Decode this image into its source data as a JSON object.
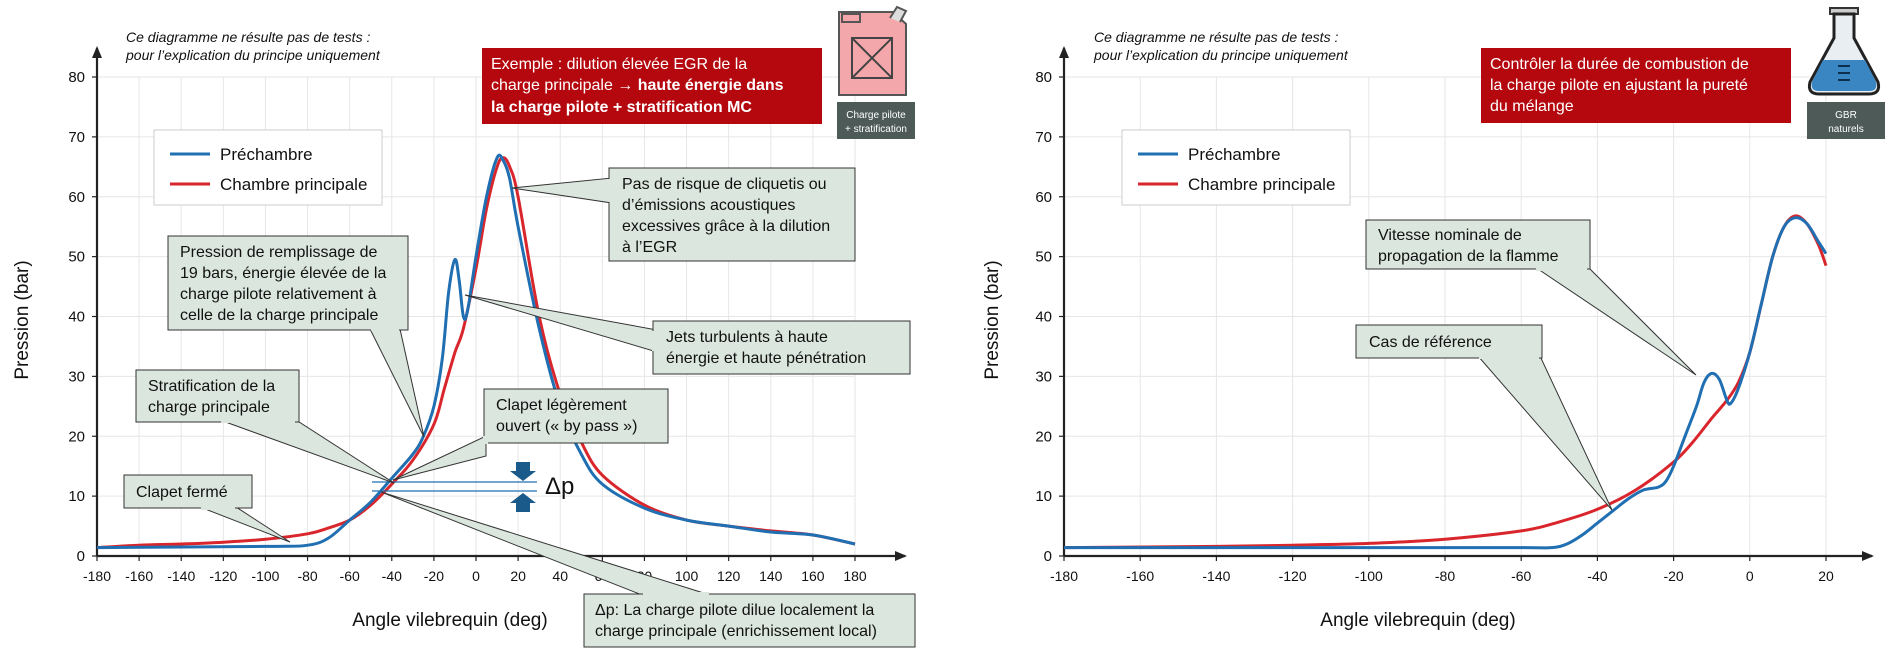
{
  "colors": {
    "prechambre": "#1f6fb2",
    "chambre": "#d9262c",
    "callout_fill": "#dbe6df",
    "red_box": "#b5080e",
    "icon_label_bg": "#4d5a58",
    "grid": "#e6e6e6"
  },
  "chart_data": [
    {
      "type": "line",
      "title": "",
      "xlabel": "Angle vilebrequin (deg)",
      "ylabel": "Pression (bar)",
      "xlim": [
        -180,
        180
      ],
      "ylim": [
        0,
        80
      ],
      "xticks": [
        -180,
        -160,
        -140,
        -120,
        -100,
        -80,
        -60,
        -40,
        -20,
        0,
        20,
        40,
        60,
        80,
        100,
        120,
        140,
        160,
        180
      ],
      "yticks": [
        0,
        10,
        20,
        30,
        40,
        50,
        60,
        70,
        80
      ],
      "grid": true,
      "legend_position": "upper-left",
      "note_lines": [
        "Ce diagramme ne résulte pas de tests :",
        "pour l’explication du principe uniquement"
      ],
      "highlight_lines": [
        "Exemple : dilution élevée EGR de la",
        "charge principale → haute énergie dans",
        "la charge pilote + stratification MC"
      ],
      "icon": {
        "name": "fuel-can-icon",
        "label_lines": [
          "Charge pilote",
          "+ stratification"
        ]
      },
      "series": [
        {
          "name": "Préchambre",
          "color": "#1f6fb2",
          "x": [
            -180,
            -100,
            -80,
            -70,
            -60,
            -50,
            -40,
            -30,
            -25,
            -20,
            -16,
            -13,
            -10,
            -8,
            -6,
            -4,
            0,
            5,
            10,
            13,
            16,
            20,
            30,
            40,
            50,
            60,
            80,
            100,
            120,
            140,
            160,
            180
          ],
          "y": [
            1.4,
            1.6,
            1.8,
            3,
            6,
            9,
            13,
            17,
            20,
            25,
            33,
            44,
            49.5,
            46,
            40,
            41,
            50,
            60,
            66.5,
            66,
            63,
            55,
            38,
            25,
            17,
            12,
            8,
            6,
            5,
            4,
            3.5,
            2
          ]
        },
        {
          "name": "Chambre principale",
          "color": "#d9262c",
          "x": [
            -180,
            -160,
            -140,
            -120,
            -100,
            -80,
            -70,
            -60,
            -50,
            -40,
            -30,
            -20,
            -15,
            -10,
            -6,
            0,
            5,
            10,
            13,
            16,
            20,
            30,
            40,
            50,
            60,
            80,
            100,
            120,
            140,
            160,
            180
          ],
          "y": [
            1.4,
            1.8,
            2,
            2.3,
            2.8,
            3.7,
            4.7,
            6,
            8.5,
            12,
            16,
            22,
            28,
            34,
            38,
            48,
            58,
            65,
            66.5,
            65,
            60,
            40,
            27,
            19,
            13.5,
            8.5,
            6,
            5,
            4.2,
            3.5,
            2
          ]
        }
      ],
      "callouts": [
        {
          "name": "callout-egr",
          "lines": [
            "Pas de risque de cliquetis ou",
            "d’émissions acoustiques",
            "excessives grâce à la dilution",
            "à l’EGR"
          ]
        },
        {
          "name": "callout-pression",
          "lines": [
            "Pression de remplissage de",
            "19 bars, énergie élevée de la",
            "charge pilote relativement à",
            "celle de la charge principale"
          ]
        },
        {
          "name": "callout-jets",
          "lines": [
            "Jets turbulents à haute",
            "énergie et haute pénétration"
          ]
        },
        {
          "name": "callout-stratification",
          "lines": [
            "Stratification de la",
            "charge principale"
          ]
        },
        {
          "name": "callout-clapet-ouvert",
          "lines": [
            "Clapet légèrement",
            "ouvert (« by pass »)"
          ]
        },
        {
          "name": "callout-clapet-ferme",
          "lines": [
            "Clapet fermé"
          ]
        },
        {
          "name": "callout-dp",
          "lines": [
            "Δp: La charge pilote dilue localement la",
            "charge principale (enrichissement local)"
          ]
        }
      ],
      "dp_label": "Δp"
    },
    {
      "type": "line",
      "title": "",
      "xlabel": "Angle vilebrequin (deg)",
      "ylabel": "Pression (bar)",
      "xlim": [
        -180,
        20
      ],
      "ylim": [
        0,
        80
      ],
      "xticks": [
        -180,
        -160,
        -140,
        -120,
        -100,
        -80,
        -60,
        -40,
        -20,
        0,
        20
      ],
      "yticks": [
        0,
        10,
        20,
        30,
        40,
        50,
        60,
        70,
        80
      ],
      "grid": true,
      "legend_position": "upper-left",
      "note_lines": [
        "Ce diagramme ne résulte pas de tests :",
        "pour l’explication du principe uniquement"
      ],
      "highlight_lines": [
        "Contrôler la durée de combustion de",
        "la charge pilote en ajustant la pureté",
        "du mélange"
      ],
      "icon": {
        "name": "flask-icon",
        "label_lines": [
          "GBR",
          "naturels"
        ]
      },
      "series": [
        {
          "name": "Préchambre",
          "color": "#1f6fb2",
          "x": [
            -180,
            -100,
            -60,
            -52,
            -48,
            -44,
            -40,
            -36,
            -32,
            -28,
            -24,
            -22,
            -20,
            -17,
            -14,
            -12,
            -10,
            -8,
            -6,
            -5,
            -3,
            0,
            3,
            6,
            9,
            12,
            15,
            18,
            20
          ],
          "y": [
            1.4,
            1.4,
            1.4,
            1.4,
            2,
            3.5,
            5.5,
            7.5,
            9.5,
            11,
            11.5,
            12.5,
            15,
            20,
            25,
            29,
            30.5,
            29.5,
            26,
            25.5,
            28,
            34,
            42,
            50,
            55,
            56.5,
            55.5,
            52.5,
            50.5
          ]
        },
        {
          "name": "Chambre principale",
          "color": "#d9262c",
          "x": [
            -180,
            -140,
            -120,
            -100,
            -80,
            -60,
            -50,
            -40,
            -30,
            -20,
            -15,
            -10,
            -6,
            -3,
            0,
            3,
            6,
            9,
            12,
            15,
            18,
            20
          ],
          "y": [
            1.4,
            1.6,
            1.8,
            2.1,
            2.8,
            4.2,
            5.7,
            7.8,
            11,
            15.7,
            19,
            23,
            26,
            29,
            34,
            42,
            50,
            55,
            56.8,
            55.5,
            52,
            48.5
          ]
        }
      ],
      "callouts": [
        {
          "name": "callout-vitesse",
          "lines": [
            "Vitesse nominale de",
            "propagation de la flamme"
          ]
        },
        {
          "name": "callout-reference",
          "lines": [
            "Cas de référence"
          ]
        }
      ]
    }
  ]
}
